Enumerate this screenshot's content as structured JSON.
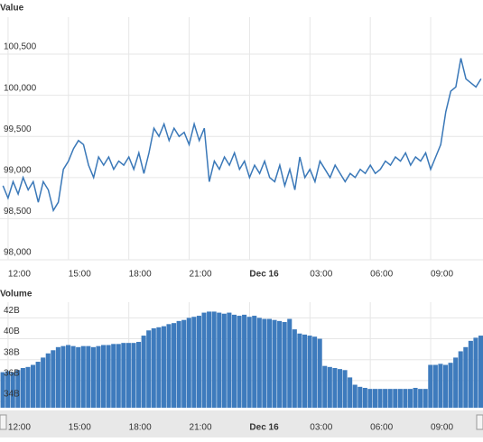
{
  "chart_data": [
    {
      "type": "line",
      "title": "Value",
      "color": "#3a78b8",
      "grid": true,
      "x": [
        11.75,
        12,
        12.25,
        12.5,
        12.75,
        13,
        13.25,
        13.5,
        13.75,
        14,
        14.25,
        14.5,
        14.75,
        15,
        15.25,
        15.5,
        15.75,
        16,
        16.25,
        16.5,
        16.75,
        17,
        17.25,
        17.5,
        17.75,
        18,
        18.25,
        18.5,
        18.75,
        19,
        19.25,
        19.5,
        19.75,
        20,
        20.25,
        20.5,
        20.75,
        21,
        21.25,
        21.5,
        21.75,
        22,
        22.25,
        22.5,
        22.75,
        23,
        23.25,
        23.5,
        23.75,
        24,
        24.25,
        24.5,
        24.75,
        25,
        25.25,
        25.5,
        25.75,
        26,
        26.25,
        26.5,
        26.75,
        27,
        27.25,
        27.5,
        27.75,
        28,
        28.25,
        28.5,
        28.75,
        29,
        29.25,
        29.5,
        29.75,
        30,
        30.25,
        30.5,
        30.75,
        31,
        31.25,
        31.5,
        31.75,
        32,
        32.25,
        32.5,
        32.75,
        33,
        33.25,
        33.5,
        33.75,
        34,
        34.25,
        34.5,
        34.75,
        35,
        35.25,
        35.5
      ],
      "values": [
        98900,
        98750,
        98950,
        98800,
        99000,
        98850,
        98950,
        98700,
        98950,
        98850,
        98600,
        98700,
        99100,
        99200,
        99350,
        99450,
        99400,
        99150,
        99000,
        99250,
        99150,
        99250,
        99100,
        99200,
        99150,
        99250,
        99100,
        99300,
        99050,
        99300,
        99600,
        99500,
        99650,
        99450,
        99600,
        99500,
        99550,
        99400,
        99650,
        99450,
        99600,
        98950,
        99200,
        99100,
        99250,
        99150,
        99300,
        99100,
        99200,
        99000,
        99150,
        99050,
        99200,
        99000,
        98950,
        99150,
        98900,
        99100,
        98850,
        99250,
        99000,
        99100,
        98950,
        99200,
        99100,
        99000,
        99150,
        99050,
        98950,
        99050,
        99000,
        99100,
        99050,
        99150,
        99050,
        99100,
        99200,
        99150,
        99250,
        99200,
        99300,
        99150,
        99250,
        99200,
        99300,
        99100,
        99250,
        99400,
        99800,
        100050,
        100100,
        100450,
        100200,
        100150,
        100100,
        100200
      ],
      "xlim": [
        11.6,
        35.6
      ],
      "xticks": [
        {
          "value": 12,
          "label": "12:00"
        },
        {
          "value": 15,
          "label": "15:00"
        },
        {
          "value": 18,
          "label": "18:00"
        },
        {
          "value": 21,
          "label": "21:00"
        },
        {
          "value": 24,
          "label": "Dec 16"
        },
        {
          "value": 27,
          "label": "03:00"
        },
        {
          "value": 30,
          "label": "06:00"
        },
        {
          "value": 33,
          "label": "09:00"
        }
      ],
      "ylim": [
        98000,
        100950
      ],
      "yticks": [
        {
          "value": 98000,
          "label": "98,000"
        },
        {
          "value": 98500,
          "label": "98,500"
        },
        {
          "value": 99000,
          "label": "99,000"
        },
        {
          "value": 99500,
          "label": "99,500"
        },
        {
          "value": 100000,
          "label": "100,000"
        },
        {
          "value": 100500,
          "label": "100,500"
        }
      ]
    },
    {
      "type": "bar",
      "title": "Volume",
      "color": "#3e7bbd",
      "grid": true,
      "x": [
        11.75,
        12,
        12.25,
        12.5,
        12.75,
        13,
        13.25,
        13.5,
        13.75,
        14,
        14.25,
        14.5,
        14.75,
        15,
        15.25,
        15.5,
        15.75,
        16,
        16.25,
        16.5,
        16.75,
        17,
        17.25,
        17.5,
        17.75,
        18,
        18.25,
        18.5,
        18.75,
        19,
        19.25,
        19.5,
        19.75,
        20,
        20.25,
        20.5,
        20.75,
        21,
        21.25,
        21.5,
        21.75,
        22,
        22.25,
        22.5,
        22.75,
        23,
        23.25,
        23.5,
        23.75,
        24,
        24.25,
        24.5,
        24.75,
        25,
        25.25,
        25.5,
        25.75,
        26,
        26.25,
        26.5,
        26.75,
        27,
        27.25,
        27.5,
        27.75,
        28,
        28.25,
        28.5,
        28.75,
        29,
        29.25,
        29.5,
        29.75,
        30,
        30.25,
        30.5,
        30.75,
        31,
        31.25,
        31.5,
        31.75,
        32,
        32.25,
        32.5,
        32.75,
        33,
        33.25,
        33.5,
        33.75,
        34,
        34.25,
        34.5,
        34.75,
        35,
        35.25,
        35.5
      ],
      "values": [
        36.8,
        36.9,
        36.8,
        37.0,
        37.2,
        37.3,
        37.5,
        37.8,
        38.2,
        38.6,
        38.9,
        39.2,
        39.3,
        39.4,
        39.3,
        39.2,
        39.3,
        39.3,
        39.2,
        39.3,
        39.4,
        39.4,
        39.5,
        39.5,
        39.6,
        39.6,
        39.6,
        39.7,
        40.3,
        40.8,
        41.0,
        41.1,
        41.2,
        41.4,
        41.5,
        41.7,
        41.8,
        42.0,
        42.1,
        42.2,
        42.5,
        42.6,
        42.6,
        42.5,
        42.4,
        42.5,
        42.3,
        42.2,
        42.3,
        42.1,
        42.2,
        42.0,
        41.9,
        41.9,
        41.8,
        41.7,
        41.6,
        41.9,
        40.9,
        40.5,
        40.4,
        40.3,
        40.2,
        40.0,
        37.4,
        37.3,
        37.2,
        37.1,
        37.0,
        36.3,
        35.6,
        35.4,
        35.3,
        35.2,
        35.2,
        35.2,
        35.2,
        35.2,
        35.2,
        35.2,
        35.2,
        35.2,
        35.3,
        35.2,
        35.2,
        37.5,
        37.5,
        37.6,
        37.5,
        37.7,
        38.2,
        38.8,
        39.2,
        39.8,
        40.1,
        40.3
      ],
      "xlim": [
        11.6,
        35.6
      ],
      "xticks": [
        {
          "value": 12,
          "label": "12:00"
        },
        {
          "value": 15,
          "label": "15:00"
        },
        {
          "value": 18,
          "label": "18:00"
        },
        {
          "value": 21,
          "label": "21:00"
        },
        {
          "value": 24,
          "label": "Dec 16"
        },
        {
          "value": 27,
          "label": "03:00"
        },
        {
          "value": 30,
          "label": "06:00"
        },
        {
          "value": 33,
          "label": "09:00"
        }
      ],
      "ylim": [
        33.4,
        43.5
      ],
      "yticks": [
        {
          "value": 34,
          "label": "34B"
        },
        {
          "value": 36,
          "label": "36B"
        },
        {
          "value": 38,
          "label": "38B"
        },
        {
          "value": 40,
          "label": "40B"
        },
        {
          "value": 42,
          "label": "42B"
        }
      ]
    }
  ]
}
